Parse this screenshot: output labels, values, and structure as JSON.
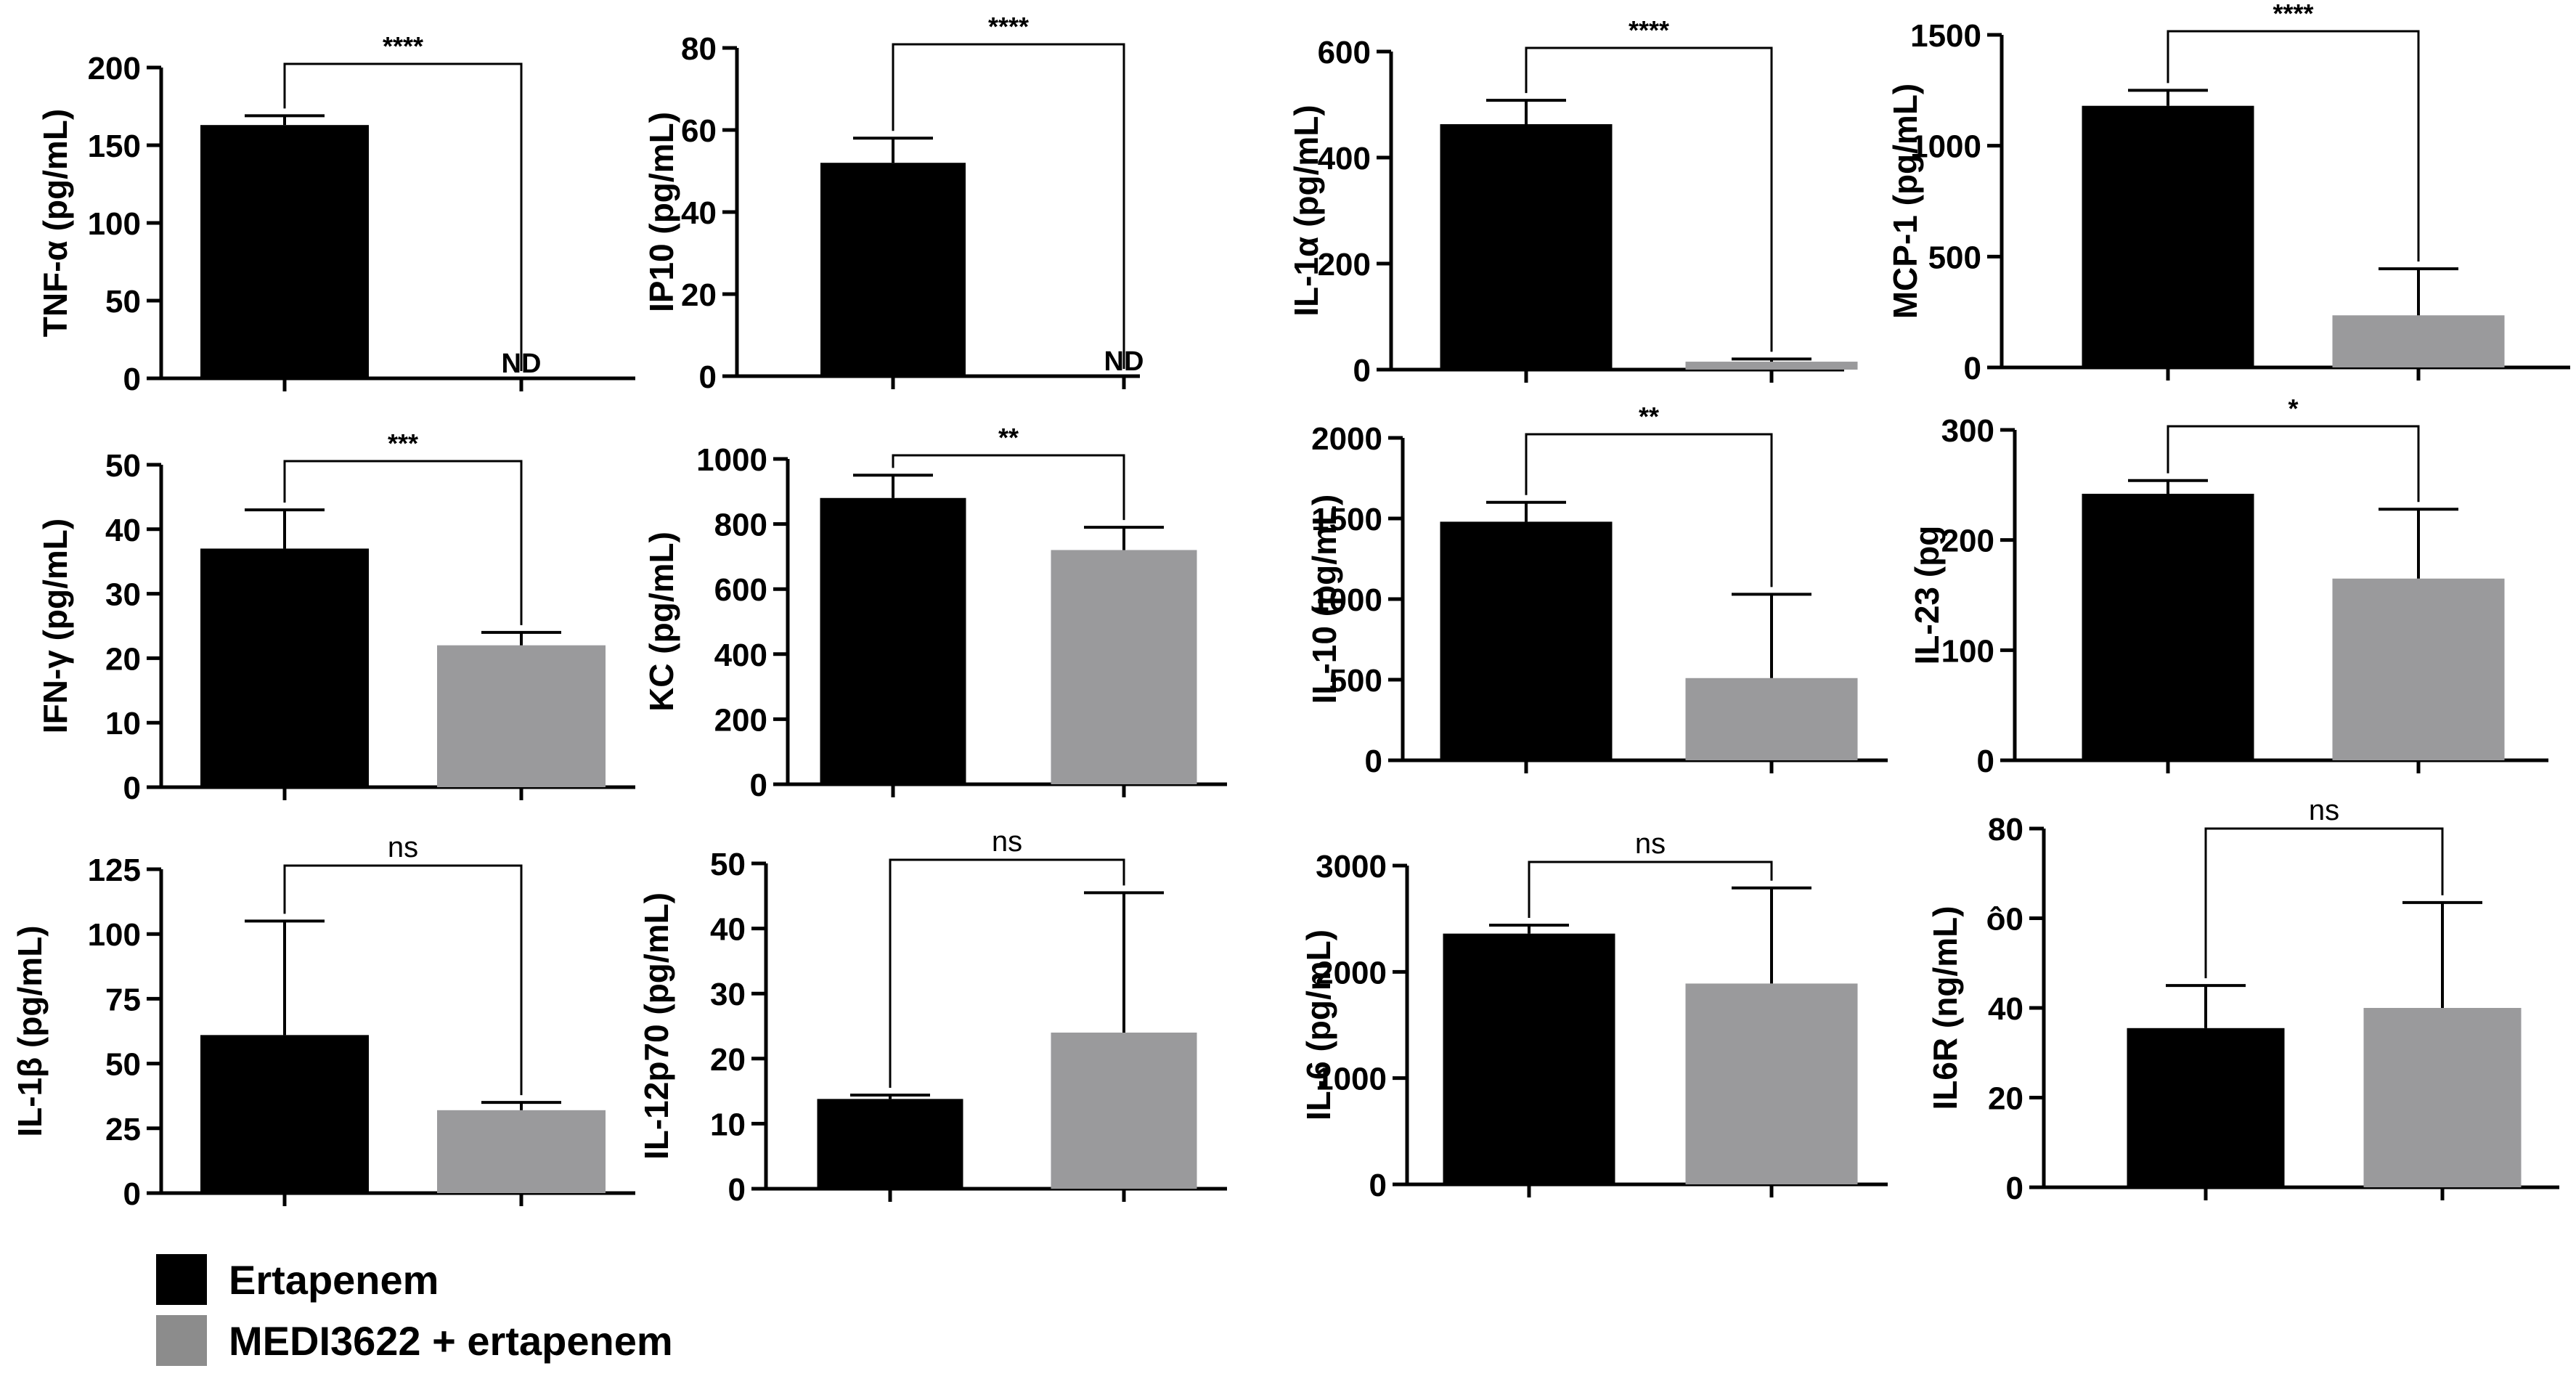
{
  "colors": {
    "ertapenem": "#000000",
    "medi": "#9a9a9c",
    "axis": "#000000"
  },
  "legend": {
    "items": [
      {
        "label": "Ertapenem",
        "color": "#000000"
      },
      {
        "label": "MEDI3622 + ertapenem",
        "color": "#8c8c8c"
      }
    ]
  },
  "chart_data": [
    {
      "type": "bar",
      "ylabel": "TNF-α (pg/mL)",
      "yticks": [
        0,
        50,
        100,
        150,
        200
      ],
      "ylim": [
        0,
        200
      ],
      "series": [
        {
          "name": "Ertapenem",
          "value": 163,
          "error": 6
        },
        {
          "name": "MEDI3622 + ertapenem",
          "value": null,
          "error": null,
          "label": "ND"
        }
      ],
      "significance": "****"
    },
    {
      "type": "bar",
      "ylabel": "IP10 (pg/mL)",
      "yticks": [
        0,
        20,
        40,
        60,
        80
      ],
      "ylim": [
        0,
        80
      ],
      "series": [
        {
          "name": "Ertapenem",
          "value": 52,
          "error": 6
        },
        {
          "name": "MEDI3622 + ertapenem",
          "value": null,
          "error": null,
          "label": "ND"
        }
      ],
      "significance": "****"
    },
    {
      "type": "bar",
      "ylabel": "IL-1α (pg/mL)",
      "yticks": [
        0,
        200,
        400,
        600
      ],
      "ylim": [
        0,
        600
      ],
      "series": [
        {
          "name": "Ertapenem",
          "value": 463,
          "error": 45
        },
        {
          "name": "MEDI3622 + ertapenem",
          "value": 15,
          "error": 5
        }
      ],
      "significance": "****"
    },
    {
      "type": "bar",
      "ylabel": "MCP-1 (pg/mL)",
      "yticks": [
        0,
        500,
        1000,
        1500
      ],
      "ylim": [
        0,
        1500
      ],
      "series": [
        {
          "name": "Ertapenem",
          "value": 1180,
          "error": 70
        },
        {
          "name": "MEDI3622 + ertapenem",
          "value": 235,
          "error": 210
        }
      ],
      "significance": "****"
    },
    {
      "type": "bar",
      "ylabel": "IFN-γ (pg/mL)",
      "yticks": [
        0,
        10,
        20,
        30,
        40,
        50
      ],
      "ylim": [
        0,
        50
      ],
      "series": [
        {
          "name": "Ertapenem",
          "value": 37,
          "error": 6
        },
        {
          "name": "MEDI3622 + ertapenem",
          "value": 22,
          "error": 2
        }
      ],
      "significance": "***"
    },
    {
      "type": "bar",
      "ylabel": "KC (pg/mL)",
      "yticks": [
        0,
        200,
        400,
        600,
        800,
        1000
      ],
      "ylim": [
        0,
        1000
      ],
      "series": [
        {
          "name": "Ertapenem",
          "value": 880,
          "error": 70
        },
        {
          "name": "MEDI3622 + ertapenem",
          "value": 720,
          "error": 70
        }
      ],
      "significance": "**"
    },
    {
      "type": "bar",
      "ylabel": "IL-10 (pg/mL)",
      "yticks": [
        0,
        500,
        1000,
        1500,
        2000
      ],
      "ylim": [
        0,
        2000
      ],
      "series": [
        {
          "name": "Ertapenem",
          "value": 1480,
          "error": 120
        },
        {
          "name": "MEDI3622 + ertapenem",
          "value": 510,
          "error": 520
        }
      ],
      "significance": "**"
    },
    {
      "type": "bar",
      "ylabel": "IL-23 (pg",
      "yticks": [
        0,
        100,
        200,
        300
      ],
      "ylim": [
        0,
        300
      ],
      "series": [
        {
          "name": "Ertapenem",
          "value": 242,
          "error": 12
        },
        {
          "name": "MEDI3622 + ertapenem",
          "value": 165,
          "error": 63
        }
      ],
      "significance": "*"
    },
    {
      "type": "bar",
      "ylabel": "IL-1β (pg/mL)",
      "yticks": [
        0,
        25,
        50,
        75,
        100,
        125
      ],
      "ylim": [
        0,
        125
      ],
      "series": [
        {
          "name": "Ertapenem",
          "value": 61,
          "error": 44
        },
        {
          "name": "MEDI3622 + ertapenem",
          "value": 32,
          "error": 3
        }
      ],
      "significance": "ns"
    },
    {
      "type": "bar",
      "ylabel": "IL-12p70 (pg/mL)",
      "yticks": [
        0,
        10,
        20,
        30,
        40,
        50
      ],
      "ylim": [
        0,
        50
      ],
      "series": [
        {
          "name": "Ertapenem",
          "value": 13.8,
          "error": 0.6
        },
        {
          "name": "MEDI3622 + ertapenem",
          "value": 24,
          "error": 21.5
        }
      ],
      "significance": "ns"
    },
    {
      "type": "bar",
      "ylabel": "IL-6 (pg/mL)",
      "yticks": [
        0,
        1000,
        2000,
        3000
      ],
      "ylim": [
        0,
        3000
      ],
      "series": [
        {
          "name": "Ertapenem",
          "value": 2360,
          "error": 80
        },
        {
          "name": "MEDI3622 + ertapenem",
          "value": 1890,
          "error": 900
        }
      ],
      "significance": "ns"
    },
    {
      "type": "bar",
      "ylabel": "IL6R (ng/mL)",
      "yticks": [
        0,
        20,
        40,
        60,
        80
      ],
      "yticklabels": [
        "0",
        "20",
        "40",
        "ô0",
        "80"
      ],
      "ylim": [
        0,
        80
      ],
      "series": [
        {
          "name": "Ertapenem",
          "value": 35.5,
          "error": 9.5
        },
        {
          "name": "MEDI3622 + ertapenem",
          "value": 40,
          "error": 23.5
        }
      ],
      "significance": "ns"
    }
  ]
}
